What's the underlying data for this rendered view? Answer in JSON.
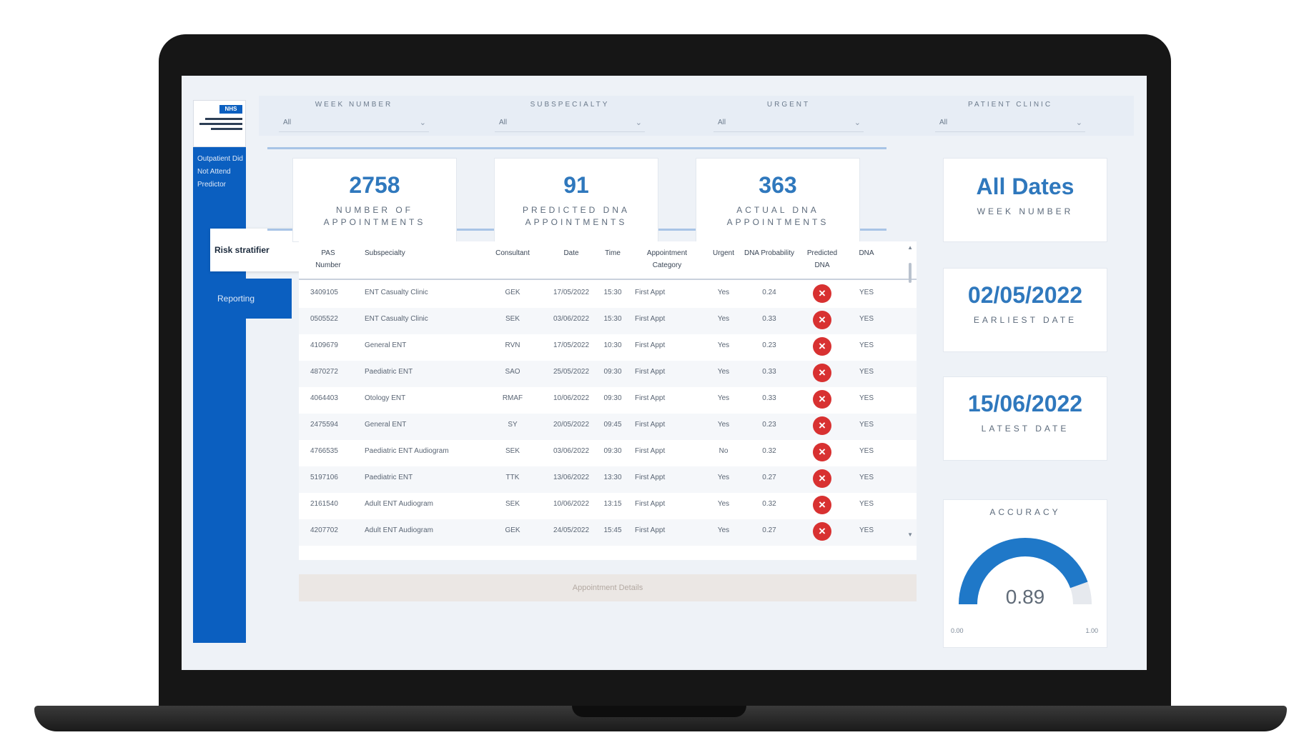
{
  "sidebar": {
    "logo_badge": "NHS",
    "nav_title": "Outpatient Did Not Attend Predictor",
    "tabs": [
      {
        "label": "Risk stratifier",
        "active": true
      },
      {
        "label": "Reporting",
        "active": false
      }
    ]
  },
  "filters": [
    {
      "label": "WEEK NUMBER",
      "value": "All"
    },
    {
      "label": "SUBSPECIALTY",
      "value": "All"
    },
    {
      "label": "URGENT",
      "value": "All"
    },
    {
      "label": "PATIENT CLINIC",
      "value": "All"
    }
  ],
  "kpis": [
    {
      "value": "2758",
      "label": "NUMBER OF APPOINTMENTS"
    },
    {
      "value": "91",
      "label": "PREDICTED DNA APPOINTMENTS"
    },
    {
      "value": "363",
      "label": "ACTUAL DNA APPOINTMENTS"
    }
  ],
  "table": {
    "columns": [
      {
        "label": "PAS Number"
      },
      {
        "label": "Subspecialty"
      },
      {
        "label": "Consultant"
      },
      {
        "label": "Date"
      },
      {
        "label": "Time"
      },
      {
        "label": "Appointment Category"
      },
      {
        "label": "Urgent"
      },
      {
        "label": "DNA Probability"
      },
      {
        "label": "Predicted DNA"
      },
      {
        "label": "DNA"
      }
    ],
    "rows": [
      {
        "pas": "3409105",
        "sub": "ENT Casualty Clinic",
        "con": "GEK",
        "date": "17/05/2022",
        "time": "15:30",
        "cat": "First Appt",
        "urg": "Yes",
        "prob": "0.24",
        "dna": "YES"
      },
      {
        "pas": "0505522",
        "sub": "ENT Casualty Clinic",
        "con": "SEK",
        "date": "03/06/2022",
        "time": "15:30",
        "cat": "First Appt",
        "urg": "Yes",
        "prob": "0.33",
        "dna": "YES"
      },
      {
        "pas": "4109679",
        "sub": "General ENT",
        "con": "RVN",
        "date": "17/05/2022",
        "time": "10:30",
        "cat": "First Appt",
        "urg": "Yes",
        "prob": "0.23",
        "dna": "YES"
      },
      {
        "pas": "4870272",
        "sub": "Paediatric ENT",
        "con": "SAO",
        "date": "25/05/2022",
        "time": "09:30",
        "cat": "First Appt",
        "urg": "Yes",
        "prob": "0.33",
        "dna": "YES"
      },
      {
        "pas": "4064403",
        "sub": "Otology ENT",
        "con": "RMAF",
        "date": "10/06/2022",
        "time": "09:30",
        "cat": "First Appt",
        "urg": "Yes",
        "prob": "0.33",
        "dna": "YES"
      },
      {
        "pas": "2475594",
        "sub": "General ENT",
        "con": "SY",
        "date": "20/05/2022",
        "time": "09:45",
        "cat": "First Appt",
        "urg": "Yes",
        "prob": "0.23",
        "dna": "YES"
      },
      {
        "pas": "4766535",
        "sub": "Paediatric ENT Audiogram",
        "con": "SEK",
        "date": "03/06/2022",
        "time": "09:30",
        "cat": "First Appt",
        "urg": "No",
        "prob": "0.32",
        "dna": "YES"
      },
      {
        "pas": "5197106",
        "sub": "Paediatric ENT",
        "con": "TTK",
        "date": "13/06/2022",
        "time": "13:30",
        "cat": "First Appt",
        "urg": "Yes",
        "prob": "0.27",
        "dna": "YES"
      },
      {
        "pas": "2161540",
        "sub": "Adult ENT Audiogram",
        "con": "SEK",
        "date": "10/06/2022",
        "time": "13:15",
        "cat": "First Appt",
        "urg": "Yes",
        "prob": "0.32",
        "dna": "YES"
      },
      {
        "pas": "4207702",
        "sub": "Adult ENT Audiogram",
        "con": "GEK",
        "date": "24/05/2022",
        "time": "15:45",
        "cat": "First Appt",
        "urg": "Yes",
        "prob": "0.27",
        "dna": "YES"
      }
    ],
    "predicted_icon": "close-circle-icon",
    "footer_label": "Appointment Details"
  },
  "week_card": {
    "value": "All Dates",
    "label": "WEEK NUMBER"
  },
  "earliest_card": {
    "value": "02/05/2022",
    "label": "EARLIEST DATE"
  },
  "latest_card": {
    "value": "15/06/2022",
    "label": "LATEST DATE"
  },
  "accuracy": {
    "title": "ACCURACY",
    "value": 0.89,
    "value_label": "0.89",
    "min": "0.00",
    "max": "1.00",
    "fill_color": "#1f78c8",
    "track_color": "#e6e9ee"
  },
  "colors": {
    "brand": "#0b5fc0",
    "accent": "#2f78bd",
    "danger": "#d83131"
  }
}
